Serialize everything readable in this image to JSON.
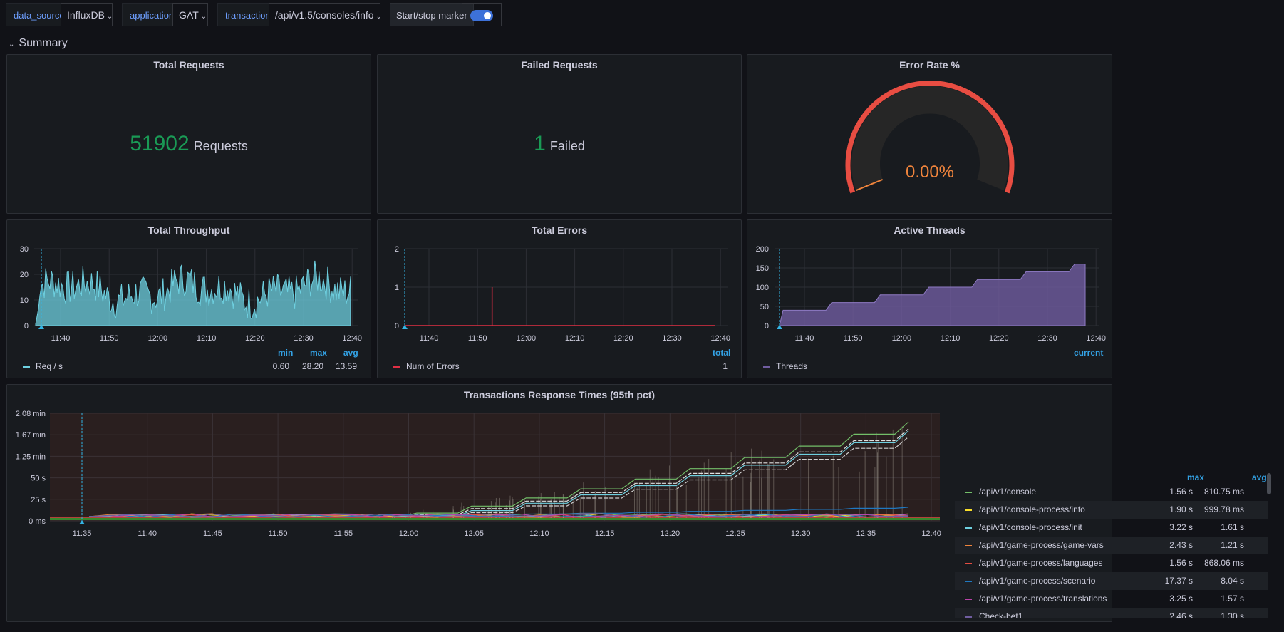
{
  "variables": {
    "data_source_label": "data_source",
    "data_source_value": "InfluxDB",
    "application_label": "application",
    "application_value": "GAT",
    "transaction_label": "transaction",
    "transaction_value": "/api/v1.5/consoles/info",
    "marker_label": "Start/stop marker",
    "marker_enabled": true
  },
  "row": {
    "title": "Summary"
  },
  "panels": {
    "total_requests": {
      "title": "Total Requests",
      "value": "51902",
      "unit": "Requests"
    },
    "failed_requests": {
      "title": "Failed Requests",
      "value": "1",
      "unit": "Failed"
    },
    "error_rate": {
      "title": "Error Rate %",
      "value": "0.00%"
    },
    "throughput": {
      "title": "Total Throughput",
      "legend_headers": [
        "min",
        "max",
        "avg"
      ],
      "series_name": "Req / s",
      "min": "0.60",
      "max": "28.20",
      "avg": "13.59"
    },
    "errors": {
      "title": "Total Errors",
      "legend_headers": [
        "total"
      ],
      "series_name": "Num of Errors",
      "total": "1"
    },
    "threads": {
      "title": "Active Threads",
      "legend_headers": [
        "current"
      ],
      "series_name": "Threads"
    },
    "response_times": {
      "title": "Transactions Response Times (95th pct)",
      "legend_headers": [
        "max",
        "avg"
      ],
      "rows": [
        {
          "name": "/api/v1/console",
          "max": "1.56 s",
          "avg": "810.75 ms",
          "color": "#73bf69"
        },
        {
          "name": "/api/v1/console-process/info",
          "max": "1.90 s",
          "avg": "999.78 ms",
          "color": "#fade2a"
        },
        {
          "name": "/api/v1/console-process/init",
          "max": "3.22 s",
          "avg": "1.61 s",
          "color": "#6ed0e0"
        },
        {
          "name": "/api/v1/game-process/game-vars",
          "max": "2.43 s",
          "avg": "1.21 s",
          "color": "#ef843c"
        },
        {
          "name": "/api/v1/game-process/languages",
          "max": "1.56 s",
          "avg": "868.06 ms",
          "color": "#e24d42"
        },
        {
          "name": "/api/v1/game-process/scenario",
          "max": "17.37 s",
          "avg": "8.04 s",
          "color": "#1f78c1"
        },
        {
          "name": "/api/v1/game-process/translations",
          "max": "3.25 s",
          "avg": "1.57 s",
          "color": "#ba43a9"
        },
        {
          "name": "Check-bet1",
          "max": "2.46 s",
          "avg": "1.30 s",
          "color": "#705da0"
        }
      ]
    }
  },
  "chart_data": [
    {
      "type": "area",
      "title": "Total Throughput",
      "x": [
        "11:40",
        "11:50",
        "12:00",
        "12:10",
        "12:20",
        "12:30",
        "12:40"
      ],
      "ylim": [
        0,
        30
      ],
      "yticks": [
        0,
        10,
        20,
        30
      ],
      "series": [
        {
          "name": "Req / s",
          "min": 0.6,
          "max": 28.2,
          "avg": 13.59,
          "color": "#6ed0e0"
        }
      ]
    },
    {
      "type": "line",
      "title": "Total Errors",
      "x": [
        "11:40",
        "11:50",
        "12:00",
        "12:10",
        "12:20",
        "12:30",
        "12:40"
      ],
      "ylim": [
        0,
        2
      ],
      "yticks": [
        0,
        1,
        2
      ],
      "series": [
        {
          "name": "Num of Errors",
          "total": 1,
          "spike_time": "11:53",
          "color": "#e02f44"
        }
      ]
    },
    {
      "type": "area",
      "title": "Active Threads",
      "x": [
        "11:40",
        "11:50",
        "12:00",
        "12:10",
        "12:20",
        "12:30",
        "12:40"
      ],
      "ylim": [
        0,
        200
      ],
      "yticks": [
        0,
        50,
        100,
        150,
        200
      ],
      "series": [
        {
          "name": "Threads",
          "steps": [
            40,
            60,
            80,
            100,
            120,
            140,
            160
          ],
          "color": "#705da0"
        }
      ]
    },
    {
      "type": "line",
      "title": "Transactions Response Times (95th pct)",
      "x": [
        "11:35",
        "11:40",
        "11:45",
        "11:50",
        "11:55",
        "12:00",
        "12:05",
        "12:10",
        "12:15",
        "12:20",
        "12:25",
        "12:30",
        "12:35",
        "12:40"
      ],
      "yticks": [
        "0 ms",
        "25 s",
        "50 s",
        "1.25 min",
        "1.67 min",
        "2.08 min"
      ]
    }
  ]
}
